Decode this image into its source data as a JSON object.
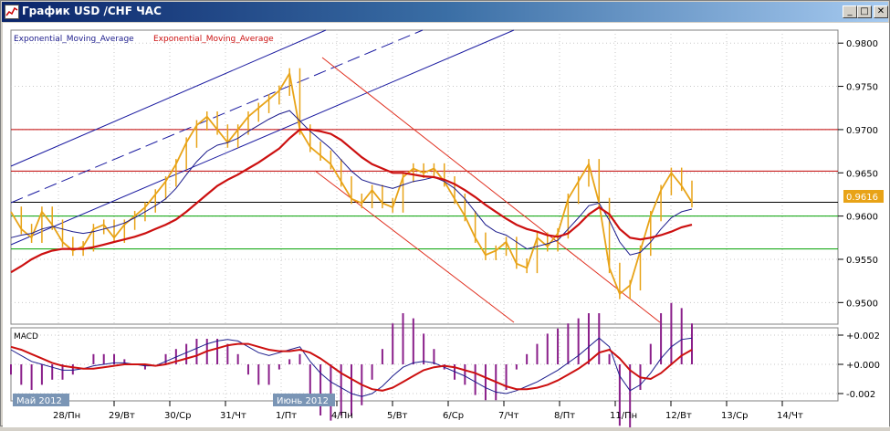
{
  "window": {
    "title": "График USD /CHF ЧАС",
    "minimize_glyph": "_",
    "maximize_glyph": "□",
    "close_glyph": "✕"
  },
  "colors": {
    "price": "#e8a317",
    "ema_fast": "#1c1c8c",
    "ema_slow": "#cc1010",
    "channel_blue": "#1a1aa0",
    "channel_red": "#e03020",
    "hline_red": "#c00000",
    "hline_green": "#00a000",
    "hline_black": "#000000",
    "macd_hist": "#8a1f8a",
    "current_price_box": "#e8a317"
  },
  "chart_data": [
    {
      "type": "line",
      "title": "",
      "legend": [
        "Exponential_Moving_Average",
        "Exponential_Moving_Average"
      ],
      "ylim": [
        0.9475,
        0.9815
      ],
      "y_ticks": [
        "0.9800",
        "0.9750",
        "0.9700",
        "0.9650",
        "0.9600",
        "0.9550",
        "0.9500"
      ],
      "x_ticks": [
        "28/Пн",
        "29/Вт",
        "30/Ср",
        "31/Чт",
        "1/Пт",
        "4/Пн",
        "5/Вт",
        "6/Ср",
        "7/Чт",
        "8/Пт",
        "11/Пн",
        "12/Вт",
        "13/Ср",
        "14/Чт"
      ],
      "period_labels": [
        "Май 2012",
        "Июнь 2012"
      ],
      "current_price": "0.9616",
      "horizontal_levels": [
        0.97,
        0.9652,
        0.9616,
        0.96,
        0.9562
      ],
      "series": [
        {
          "values": [
            0.9605,
            0.9585,
            0.9575,
            0.9605,
            0.959,
            0.957,
            0.956,
            0.9565,
            0.9585,
            0.959,
            0.9575,
            0.959,
            0.96,
            0.961,
            0.9625,
            0.964,
            0.966,
            0.9685,
            0.9705,
            0.9715,
            0.97,
            0.9685,
            0.97,
            0.9715,
            0.9725,
            0.9735,
            0.9745,
            0.9765,
            0.97,
            0.968,
            0.967,
            0.966,
            0.964,
            0.962,
            0.9615,
            0.963,
            0.9615,
            0.961,
            0.9645,
            0.9655,
            0.965,
            0.9655,
            0.964,
            0.962,
            0.96,
            0.9575,
            0.9555,
            0.956,
            0.957,
            0.9545,
            0.954,
            0.9575,
            0.9565,
            0.958,
            0.962,
            0.964,
            0.966,
            0.9615,
            0.954,
            0.951,
            0.952,
            0.956,
            0.96,
            0.963,
            0.965,
            0.9635,
            0.9616
          ]
        },
        {
          "values": [
            0.9575,
            0.9578,
            0.958,
            0.9585,
            0.9588,
            0.9585,
            0.9582,
            0.958,
            0.9582,
            0.9585,
            0.9588,
            0.9592,
            0.9598,
            0.9605,
            0.9612,
            0.962,
            0.9632,
            0.9648,
            0.9663,
            0.9675,
            0.9682,
            0.9685,
            0.969,
            0.9698,
            0.9705,
            0.9712,
            0.9718,
            0.9722,
            0.971,
            0.9698,
            0.9688,
            0.9678,
            0.9665,
            0.9652,
            0.9642,
            0.9638,
            0.9635,
            0.9632,
            0.9636,
            0.964,
            0.9642,
            0.9645,
            0.964,
            0.9632,
            0.962,
            0.9605,
            0.959,
            0.9582,
            0.9578,
            0.957,
            0.9562,
            0.9565,
            0.9568,
            0.9572,
            0.9585,
            0.9598,
            0.9612,
            0.9615,
            0.9595,
            0.957,
            0.9555,
            0.9558,
            0.957,
            0.9585,
            0.9598,
            0.9605,
            0.9608
          ]
        },
        {
          "values": [
            0.9535,
            0.9542,
            0.955,
            0.9556,
            0.956,
            0.9562,
            0.9562,
            0.9562,
            0.9564,
            0.9567,
            0.957,
            0.9573,
            0.9576,
            0.958,
            0.9585,
            0.959,
            0.9596,
            0.9605,
            0.9615,
            0.9625,
            0.9635,
            0.9642,
            0.9648,
            0.9655,
            0.9662,
            0.967,
            0.9678,
            0.969,
            0.97,
            0.97,
            0.9698,
            0.9695,
            0.9688,
            0.9678,
            0.9668,
            0.966,
            0.9655,
            0.965,
            0.965,
            0.9648,
            0.9646,
            0.9645,
            0.9642,
            0.9637,
            0.963,
            0.9622,
            0.9613,
            0.9605,
            0.9597,
            0.959,
            0.9585,
            0.9582,
            0.9578,
            0.9576,
            0.958,
            0.959,
            0.9602,
            0.961,
            0.9602,
            0.9585,
            0.9575,
            0.9573,
            0.9575,
            0.9578,
            0.9582,
            0.9587,
            0.959
          ]
        }
      ]
    },
    {
      "type": "line",
      "title": "MACD",
      "ylim": [
        -0.0025,
        0.0025
      ],
      "y_ticks": [
        "+0.002",
        "+0.000",
        "-0.002"
      ],
      "series": [
        {
          "values": [
            0.001,
            0.0006,
            0.0002,
            0.0,
            -0.0002,
            -0.0004,
            -0.0004,
            -0.0003,
            -0.0001,
            0.0,
            0.0001,
            0.0001,
            0.0,
            -0.0001,
            -0.0001,
            0.0002,
            0.0005,
            0.0008,
            0.0011,
            0.0014,
            0.0016,
            0.0017,
            0.0016,
            0.0012,
            0.0008,
            0.0006,
            0.0008,
            0.001,
            0.0012,
            0.0002,
            -0.0006,
            -0.0012,
            -0.0016,
            -0.002,
            -0.0022,
            -0.002,
            -0.0015,
            -0.0008,
            -0.0002,
            0.0001,
            0.0002,
            0.0001,
            -0.0002,
            -0.0005,
            -0.0008,
            -0.0012,
            -0.0016,
            -0.0019,
            -0.002,
            -0.0018,
            -0.0015,
            -0.0012,
            -0.0008,
            -0.0004,
            0.0001,
            0.0006,
            0.0012,
            0.0018,
            0.0012,
            -0.0008,
            -0.0018,
            -0.0014,
            -0.0006,
            0.0004,
            0.0012,
            0.0017,
            0.0018
          ]
        },
        {
          "values": [
            0.0012,
            0.001,
            0.0007,
            0.0004,
            0.0001,
            -0.0001,
            -0.0002,
            -0.0003,
            -0.0003,
            -0.0002,
            -0.0001,
            0.0,
            0.0,
            0.0,
            -0.0001,
            0.0,
            0.0002,
            0.0004,
            0.0006,
            0.0009,
            0.0011,
            0.0013,
            0.0014,
            0.0014,
            0.0012,
            0.001,
            0.0009,
            0.0009,
            0.001,
            0.0008,
            0.0004,
            -0.0001,
            -0.0006,
            -0.001,
            -0.0014,
            -0.0017,
            -0.0018,
            -0.0016,
            -0.0012,
            -0.0008,
            -0.0004,
            -0.0002,
            -0.0001,
            -0.0002,
            -0.0004,
            -0.0006,
            -0.0009,
            -0.0012,
            -0.0015,
            -0.0017,
            -0.0017,
            -0.0016,
            -0.0014,
            -0.0011,
            -0.0007,
            -0.0003,
            0.0002,
            0.0008,
            0.001,
            0.0004,
            -0.0004,
            -0.0009,
            -0.001,
            -0.0006,
            0.0,
            0.0006,
            0.001
          ]
        }
      ]
    }
  ]
}
